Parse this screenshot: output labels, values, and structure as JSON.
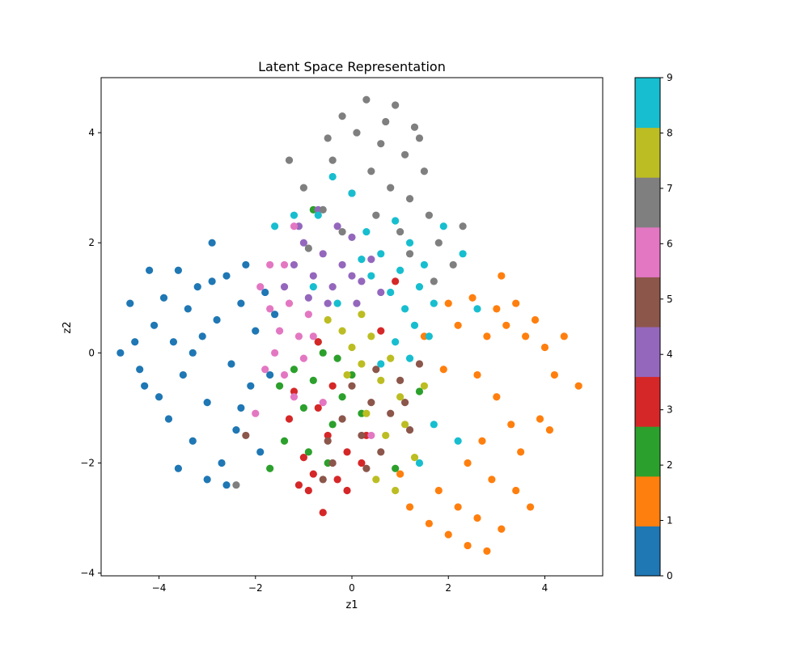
{
  "chart_data": {
    "type": "scatter",
    "title": "Latent Space Representation",
    "xlabel": "z1",
    "ylabel": "z2",
    "xlim": [
      -5.2,
      5.2
    ],
    "ylim": [
      -4.05,
      5.0
    ],
    "xticks": [
      -4,
      -2,
      0,
      2,
      4
    ],
    "yticks": [
      -4,
      -2,
      0,
      2,
      4
    ],
    "grid": false,
    "colormap": "tab10",
    "colorbar": {
      "ticks": [
        0,
        1,
        2,
        3,
        4,
        5,
        6,
        7,
        8,
        9
      ],
      "colors": [
        "#1f77b4",
        "#ff7f0e",
        "#2ca02c",
        "#d62728",
        "#9467bd",
        "#8c564b",
        "#e377c2",
        "#7f7f7f",
        "#bcbd22",
        "#17becf"
      ]
    },
    "series": [
      {
        "class": 0,
        "color": "#1f77b4",
        "points": [
          [
            -4.8,
            0.0
          ],
          [
            -4.6,
            0.9
          ],
          [
            -4.5,
            0.2
          ],
          [
            -4.4,
            -0.3
          ],
          [
            -4.2,
            1.5
          ],
          [
            -4.1,
            0.5
          ],
          [
            -4.0,
            -0.8
          ],
          [
            -3.9,
            1.0
          ],
          [
            -3.8,
            -1.2
          ],
          [
            -3.7,
            0.2
          ],
          [
            -3.6,
            1.5
          ],
          [
            -3.5,
            -0.4
          ],
          [
            -3.4,
            0.8
          ],
          [
            -3.3,
            -1.6
          ],
          [
            -3.2,
            1.2
          ],
          [
            -3.1,
            0.3
          ],
          [
            -3.0,
            -0.9
          ],
          [
            -2.9,
            2.0
          ],
          [
            -2.8,
            0.6
          ],
          [
            -2.7,
            -2.0
          ],
          [
            -2.6,
            1.4
          ],
          [
            -2.5,
            -0.2
          ],
          [
            -2.4,
            -1.4
          ],
          [
            -2.3,
            0.9
          ],
          [
            -2.2,
            1.6
          ],
          [
            -2.1,
            -0.6
          ],
          [
            -2.0,
            0.4
          ],
          [
            -1.9,
            -1.8
          ],
          [
            -1.8,
            1.1
          ],
          [
            -1.7,
            -0.4
          ],
          [
            -3.6,
            -2.1
          ],
          [
            -3.0,
            -2.3
          ],
          [
            -2.6,
            -2.4
          ],
          [
            -4.3,
            -0.6
          ],
          [
            -3.3,
            0.0
          ],
          [
            -2.9,
            1.3
          ],
          [
            -2.3,
            -1.0
          ],
          [
            -1.6,
            0.7
          ]
        ]
      },
      {
        "class": 1,
        "color": "#ff7f0e",
        "points": [
          [
            2.2,
            0.5
          ],
          [
            2.5,
            1.0
          ],
          [
            2.8,
            0.3
          ],
          [
            3.0,
            0.8
          ],
          [
            3.2,
            0.5
          ],
          [
            3.4,
            0.9
          ],
          [
            3.6,
            0.3
          ],
          [
            3.8,
            0.6
          ],
          [
            4.0,
            0.1
          ],
          [
            4.2,
            -0.4
          ],
          [
            4.4,
            0.3
          ],
          [
            4.7,
            -0.6
          ],
          [
            2.6,
            -0.4
          ],
          [
            3.0,
            -0.8
          ],
          [
            3.3,
            -1.3
          ],
          [
            2.7,
            -1.6
          ],
          [
            3.5,
            -1.8
          ],
          [
            3.9,
            -1.2
          ],
          [
            4.1,
            -1.4
          ],
          [
            2.4,
            -2.0
          ],
          [
            2.9,
            -2.3
          ],
          [
            3.4,
            -2.5
          ],
          [
            2.2,
            -2.8
          ],
          [
            2.6,
            -3.0
          ],
          [
            3.1,
            -3.2
          ],
          [
            2.4,
            -3.5
          ],
          [
            2.0,
            -3.3
          ],
          [
            1.6,
            -3.1
          ],
          [
            1.2,
            -2.8
          ],
          [
            1.0,
            -2.2
          ],
          [
            3.7,
            -2.8
          ],
          [
            2.8,
            -3.6
          ],
          [
            1.8,
            -2.5
          ],
          [
            1.5,
            0.3
          ],
          [
            1.9,
            -0.3
          ],
          [
            3.1,
            1.4
          ],
          [
            2.0,
            0.9
          ]
        ]
      },
      {
        "class": 2,
        "color": "#2ca02c",
        "points": [
          [
            -1.5,
            -0.6
          ],
          [
            -1.2,
            -0.3
          ],
          [
            -1.0,
            -1.0
          ],
          [
            -0.8,
            -0.5
          ],
          [
            -0.6,
            0.0
          ],
          [
            -0.4,
            -1.3
          ],
          [
            -0.2,
            -0.8
          ],
          [
            0.0,
            -0.4
          ],
          [
            0.2,
            -1.1
          ],
          [
            -1.4,
            -1.6
          ],
          [
            -0.9,
            -1.8
          ],
          [
            -0.5,
            -2.0
          ],
          [
            -1.7,
            -2.1
          ],
          [
            -0.7,
            0.2
          ],
          [
            -0.3,
            -0.1
          ],
          [
            1.4,
            -0.7
          ],
          [
            0.9,
            -2.1
          ],
          [
            -0.8,
            2.6
          ]
        ]
      },
      {
        "class": 3,
        "color": "#d62728",
        "points": [
          [
            -1.3,
            -1.2
          ],
          [
            -1.0,
            -1.9
          ],
          [
            -0.8,
            -2.2
          ],
          [
            -0.5,
            -1.5
          ],
          [
            -0.3,
            -2.3
          ],
          [
            -0.1,
            -1.8
          ],
          [
            0.2,
            -2.0
          ],
          [
            -1.1,
            -2.4
          ],
          [
            -0.7,
            -1.0
          ],
          [
            -0.4,
            -0.6
          ],
          [
            -0.6,
            -2.9
          ],
          [
            0.3,
            -1.5
          ],
          [
            -0.9,
            -2.5
          ],
          [
            -0.1,
            -2.5
          ],
          [
            0.9,
            1.3
          ],
          [
            0.6,
            0.4
          ],
          [
            -0.7,
            0.2
          ],
          [
            -1.2,
            -0.7
          ]
        ]
      },
      {
        "class": 4,
        "color": "#9467bd",
        "points": [
          [
            -1.4,
            1.2
          ],
          [
            -1.2,
            1.6
          ],
          [
            -1.0,
            2.0
          ],
          [
            -0.8,
            1.4
          ],
          [
            -0.6,
            1.8
          ],
          [
            -0.4,
            1.2
          ],
          [
            -0.2,
            1.6
          ],
          [
            0.0,
            2.1
          ],
          [
            0.2,
            1.3
          ],
          [
            0.4,
            1.7
          ],
          [
            -0.9,
            1.0
          ],
          [
            -0.5,
            0.9
          ],
          [
            0.1,
            0.9
          ],
          [
            -1.1,
            2.3
          ],
          [
            -0.3,
            2.3
          ],
          [
            -0.7,
            2.6
          ],
          [
            0.6,
            1.1
          ],
          [
            0.0,
            1.4
          ]
        ]
      },
      {
        "class": 5,
        "color": "#8c564b",
        "points": [
          [
            -0.2,
            -1.2
          ],
          [
            0.0,
            -0.6
          ],
          [
            0.2,
            -1.5
          ],
          [
            0.4,
            -0.9
          ],
          [
            0.6,
            -1.8
          ],
          [
            0.8,
            -1.1
          ],
          [
            1.0,
            -0.5
          ],
          [
            1.2,
            -1.4
          ],
          [
            -0.4,
            -2.0
          ],
          [
            -0.6,
            -2.3
          ],
          [
            0.5,
            -0.3
          ],
          [
            1.1,
            -0.9
          ],
          [
            0.3,
            -2.1
          ],
          [
            -0.5,
            -1.6
          ],
          [
            -2.2,
            -1.5
          ],
          [
            1.4,
            -0.2
          ]
        ]
      },
      {
        "class": 6,
        "color": "#e377c2",
        "points": [
          [
            -1.9,
            1.2
          ],
          [
            -1.7,
            0.8
          ],
          [
            -1.5,
            0.4
          ],
          [
            -1.3,
            0.9
          ],
          [
            -1.1,
            0.3
          ],
          [
            -0.9,
            0.7
          ],
          [
            -1.6,
            0.0
          ],
          [
            -1.4,
            -0.4
          ],
          [
            -1.2,
            -0.8
          ],
          [
            -1.8,
            -0.3
          ],
          [
            -1.0,
            -0.1
          ],
          [
            -0.8,
            0.3
          ],
          [
            -1.7,
            1.6
          ],
          [
            -1.4,
            1.6
          ],
          [
            -1.2,
            2.3
          ],
          [
            -2.0,
            -1.1
          ],
          [
            -0.6,
            -0.9
          ],
          [
            0.4,
            -1.5
          ]
        ]
      },
      {
        "class": 7,
        "color": "#7f7f7f",
        "points": [
          [
            -0.2,
            4.3
          ],
          [
            0.3,
            4.6
          ],
          [
            0.9,
            4.5
          ],
          [
            1.3,
            4.1
          ],
          [
            0.1,
            4.0
          ],
          [
            0.6,
            3.8
          ],
          [
            1.1,
            3.6
          ],
          [
            1.5,
            3.3
          ],
          [
            -0.4,
            3.5
          ],
          [
            0.4,
            3.3
          ],
          [
            0.8,
            3.0
          ],
          [
            1.2,
            2.8
          ],
          [
            1.6,
            2.5
          ],
          [
            0.0,
            2.9
          ],
          [
            -0.6,
            2.6
          ],
          [
            -1.3,
            3.5
          ],
          [
            -1.0,
            3.0
          ],
          [
            0.5,
            2.5
          ],
          [
            1.0,
            2.2
          ],
          [
            1.8,
            2.0
          ],
          [
            2.1,
            1.6
          ],
          [
            2.3,
            2.3
          ],
          [
            -0.2,
            2.2
          ],
          [
            1.4,
            3.9
          ],
          [
            0.7,
            4.2
          ],
          [
            -0.5,
            3.9
          ],
          [
            1.7,
            1.3
          ],
          [
            -2.4,
            -2.4
          ],
          [
            -0.9,
            1.9
          ],
          [
            1.2,
            1.8
          ]
        ]
      },
      {
        "class": 8,
        "color": "#bcbd22",
        "points": [
          [
            -0.2,
            0.4
          ],
          [
            0.0,
            0.1
          ],
          [
            0.2,
            -0.2
          ],
          [
            0.4,
            0.3
          ],
          [
            0.6,
            -0.5
          ],
          [
            0.8,
            -0.1
          ],
          [
            1.0,
            -0.8
          ],
          [
            0.3,
            -1.1
          ],
          [
            0.7,
            -1.5
          ],
          [
            1.1,
            -1.3
          ],
          [
            0.5,
            -2.3
          ],
          [
            0.9,
            -2.5
          ],
          [
            1.3,
            -1.9
          ],
          [
            -0.5,
            0.6
          ],
          [
            -0.1,
            -0.4
          ],
          [
            1.5,
            -0.6
          ],
          [
            0.2,
            0.7
          ]
        ]
      },
      {
        "class": 9,
        "color": "#17becf",
        "points": [
          [
            0.3,
            2.2
          ],
          [
            0.6,
            1.8
          ],
          [
            0.9,
            2.4
          ],
          [
            1.2,
            2.0
          ],
          [
            1.5,
            1.6
          ],
          [
            0.4,
            1.4
          ],
          [
            0.8,
            1.1
          ],
          [
            1.1,
            0.8
          ],
          [
            1.4,
            1.2
          ],
          [
            1.7,
            0.9
          ],
          [
            1.9,
            2.3
          ],
          [
            0.2,
            1.7
          ],
          [
            1.0,
            1.5
          ],
          [
            1.3,
            0.5
          ],
          [
            1.6,
            0.3
          ],
          [
            -0.4,
            3.2
          ],
          [
            -1.6,
            2.3
          ],
          [
            -1.2,
            2.5
          ],
          [
            0.0,
            2.9
          ],
          [
            -0.7,
            2.5
          ],
          [
            2.3,
            1.8
          ],
          [
            2.6,
            0.8
          ],
          [
            1.2,
            -0.1
          ],
          [
            0.6,
            -0.2
          ],
          [
            -0.3,
            0.9
          ],
          [
            -0.8,
            1.2
          ],
          [
            2.2,
            -1.6
          ],
          [
            1.4,
            -2.0
          ],
          [
            1.7,
            -1.3
          ],
          [
            0.9,
            0.2
          ]
        ]
      }
    ]
  }
}
